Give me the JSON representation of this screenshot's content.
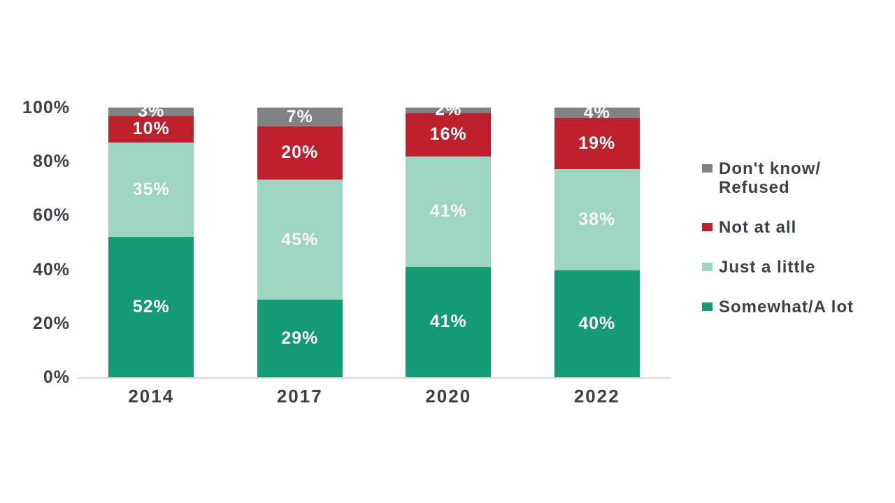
{
  "chart_data": {
    "type": "bar",
    "subtype": "100-percent-stacked-column",
    "title": "",
    "xlabel": "",
    "ylabel": "",
    "categories": [
      "2014",
      "2017",
      "2020",
      "2022"
    ],
    "series": [
      {
        "name": "Somewhat/A lot",
        "color": "#149a74",
        "values": [
          52,
          29,
          41,
          40
        ]
      },
      {
        "name": "Just a little",
        "color": "#9cd6c2",
        "values": [
          35,
          45,
          41,
          38
        ]
      },
      {
        "name": "Not at all",
        "color": "#be202e",
        "values": [
          10,
          20,
          16,
          19
        ]
      },
      {
        "name": "Don't know/Refused",
        "color": "#808285",
        "values": [
          3,
          7,
          2,
          4
        ]
      }
    ],
    "value_label_suffix": "%",
    "y_ticks": [
      0,
      20,
      40,
      60,
      80,
      100
    ],
    "y_tick_suffix": "%",
    "ylim": [
      0,
      100
    ],
    "grid": false,
    "legend_position": "right",
    "legend_items": [
      {
        "label": "Don't know/\nRefused",
        "color": "#808285"
      },
      {
        "label": "Not at all",
        "color": "#be202e"
      },
      {
        "label": "Just a little",
        "color": "#9cd6c2"
      },
      {
        "label": "Somewhat/A lot",
        "color": "#149a74"
      }
    ]
  },
  "colors": {
    "background": "#ffffff",
    "axis_text": "#3f3f46",
    "axis_line": "#d8d8d8",
    "bar_label_text": "#ffffff"
  }
}
